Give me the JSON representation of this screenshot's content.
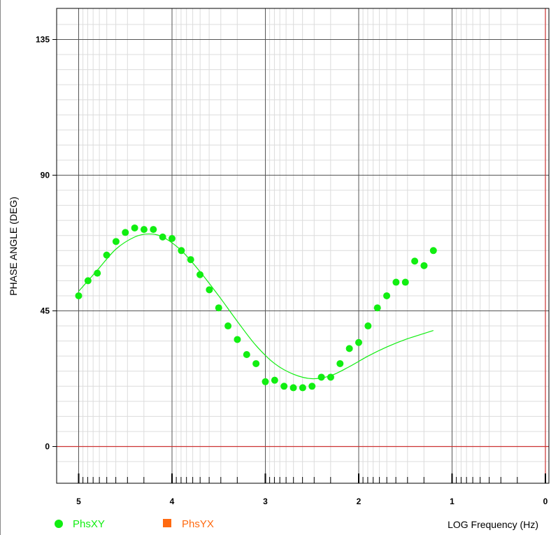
{
  "chart_data": {
    "type": "scatter",
    "title": "",
    "xlabel": "LOG Frequency (Hz)",
    "ylabel": "PHASE ANGLE (DEG)",
    "xlim": [
      5.23,
      0
    ],
    "ylim": [
      -11,
      145
    ],
    "x_scale": "reversed",
    "x_ticks": [
      5,
      4,
      3,
      2,
      1,
      0
    ],
    "y_ticks": [
      0,
      45,
      90,
      135
    ],
    "grid": true,
    "legend_position": "bottom-left",
    "reference_lines": [
      {
        "axis": "y",
        "value": 0,
        "color": "#cc3333"
      },
      {
        "axis": "x",
        "value": 0,
        "color": "#cc3333"
      }
    ],
    "series": [
      {
        "name": "PhsXY",
        "kind": "scatter",
        "color": "#11ee11",
        "x": [
          5.0,
          4.9,
          4.8,
          4.7,
          4.6,
          4.5,
          4.4,
          4.3,
          4.2,
          4.1,
          4.0,
          3.9,
          3.8,
          3.7,
          3.6,
          3.5,
          3.4,
          3.3,
          3.2,
          3.1,
          3.0,
          2.9,
          2.8,
          2.7,
          2.6,
          2.5,
          2.4,
          2.3,
          2.2,
          2.1,
          2.0,
          1.9,
          1.8,
          1.7,
          1.6,
          1.5,
          1.4,
          1.3,
          1.2
        ],
        "y": [
          50,
          55,
          57.5,
          63.5,
          68,
          71,
          72.5,
          72,
          72,
          69.5,
          69,
          65,
          62,
          57,
          52,
          46,
          40,
          35.5,
          30.5,
          27.5,
          21.5,
          22,
          20,
          19.5,
          19.5,
          20,
          23,
          23,
          27.5,
          32.5,
          34.5,
          40,
          46,
          50,
          54.5,
          54.5,
          61.5,
          60,
          65
        ]
      },
      {
        "kind": "line",
        "color": "#11ee11",
        "x": [
          5.0,
          4.8,
          4.6,
          4.4,
          4.25,
          4.1,
          3.9,
          3.7,
          3.5,
          3.3,
          3.1,
          2.9,
          2.7,
          2.5,
          2.3,
          2.1,
          1.9,
          1.7,
          1.5,
          1.3,
          1.2
        ],
        "y": [
          51.5,
          58.5,
          65.5,
          69.5,
          70.5,
          69.5,
          65,
          58,
          50,
          41.5,
          33.5,
          27.5,
          24,
          22.5,
          23.5,
          26.5,
          30,
          33,
          35.5,
          37.5,
          38.5
        ]
      },
      {
        "name": "PhsYX",
        "kind": "scatter",
        "color": "#ff6a10",
        "x": [],
        "y": []
      }
    ]
  }
}
